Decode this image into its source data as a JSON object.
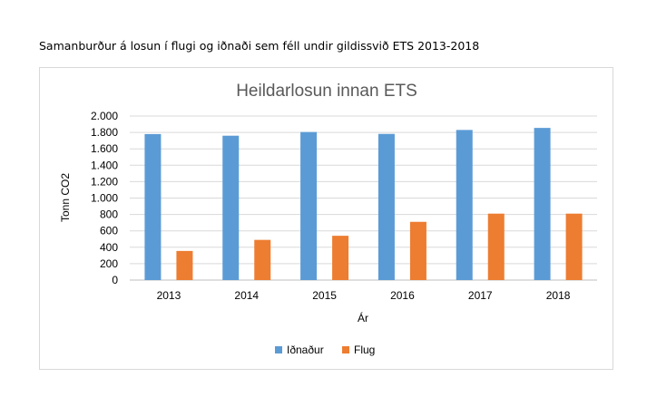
{
  "caption": "Samanburður á losun í flugi og iðnaði sem féll undir gildissvið ETS 2013-2018",
  "chart_data": {
    "type": "bar",
    "title": "Heildarlosun innan ETS",
    "xlabel": "Ár",
    "ylabel": "Tonn CO2",
    "categories": [
      "2013",
      "2014",
      "2015",
      "2016",
      "2017",
      "2018"
    ],
    "ylim": [
      0,
      2000
    ],
    "yticks": [
      0,
      200,
      400,
      600,
      800,
      1000,
      1200,
      1400,
      1600,
      1800,
      2000
    ],
    "ytick_labels": [
      "0",
      "200",
      "400",
      "600",
      "800",
      "1.000",
      "1.200",
      "1.400",
      "1.600",
      "1.800",
      "2.000"
    ],
    "grid": true,
    "legend_position": "bottom",
    "series": [
      {
        "name": "Iðnaður",
        "color": "#5b9bd5",
        "values": [
          1780,
          1760,
          1805,
          1782,
          1830,
          1855
        ]
      },
      {
        "name": "Flug",
        "color": "#ed7d31",
        "values": [
          355,
          490,
          540,
          710,
          810,
          810
        ]
      }
    ]
  }
}
